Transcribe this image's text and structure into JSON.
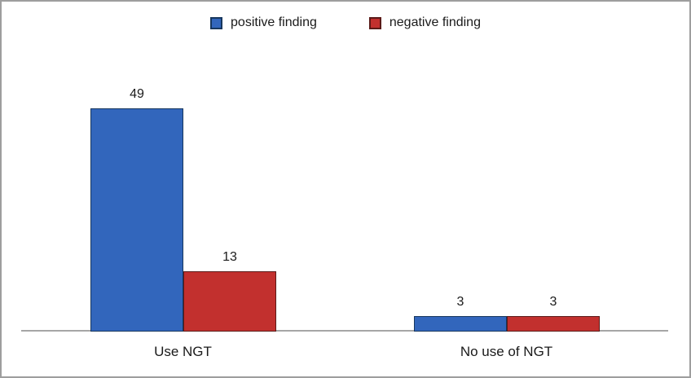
{
  "legend": {
    "items": [
      {
        "label": "positive finding",
        "color": "#3266bc",
        "border_color": "#17375e"
      },
      {
        "label": "negative finding",
        "color": "#c2302e",
        "border_color": "#5b1a18"
      }
    ]
  },
  "chart_data": {
    "type": "bar",
    "title": "",
    "xlabel": "",
    "ylabel": "",
    "categories": [
      "Use NGT",
      "No use of NGT"
    ],
    "series": [
      {
        "name": "positive finding",
        "color": "#3266bc",
        "border_color": "#17375e",
        "values": [
          49,
          3
        ]
      },
      {
        "name": "negative finding",
        "color": "#c2302e",
        "border_color": "#5b1a18",
        "values": [
          13,
          3
        ]
      }
    ],
    "ylim": [
      0,
      53
    ],
    "grid": false,
    "legend_position": "top-center",
    "value_labels_shown": true,
    "axis_color": "#a6a6a6",
    "frame_color": "#9e9e9e"
  }
}
